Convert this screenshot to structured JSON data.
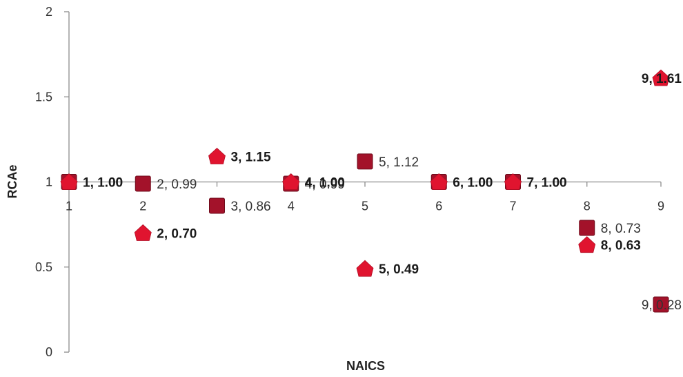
{
  "chart_data": {
    "type": "scatter",
    "title": "",
    "xlabel": "NAICS",
    "ylabel": "RCAe",
    "xlim": [
      1,
      9
    ],
    "ylim": [
      0,
      2
    ],
    "x_ticks": [
      "1",
      "2",
      "3",
      "4",
      "5",
      "6",
      "7",
      "8",
      "9"
    ],
    "y_ticks": [
      "0",
      "0.5",
      "1",
      "1.5",
      "2"
    ],
    "grid": false,
    "legend": "none",
    "series": [
      {
        "marker": "square",
        "color": "#a3122a",
        "bold_labels": false,
        "points": [
          {
            "x": 1,
            "y": 1.0,
            "label": "1, 1.00"
          },
          {
            "x": 2,
            "y": 0.99,
            "label": "2, 0.99"
          },
          {
            "x": 3,
            "y": 0.86,
            "label": "3, 0.86"
          },
          {
            "x": 4,
            "y": 0.99,
            "label": "4, 0.99"
          },
          {
            "x": 5,
            "y": 1.12,
            "label": "5, 1.12"
          },
          {
            "x": 6,
            "y": 1.0,
            "label": "6, 1.00"
          },
          {
            "x": 7,
            "y": 1.0,
            "label": "7, 1.00"
          },
          {
            "x": 8,
            "y": 0.73,
            "label": "8, 0.73"
          },
          {
            "x": 9,
            "y": 0.28,
            "label": "9, 0.28"
          }
        ]
      },
      {
        "marker": "triangle",
        "color": "#e0142f",
        "bold_labels": true,
        "points": [
          {
            "x": 1,
            "y": 1.0,
            "label": "1, 1.00"
          },
          {
            "x": 2,
            "y": 0.7,
            "label": "2, 0.70"
          },
          {
            "x": 3,
            "y": 1.15,
            "label": "3, 1.15"
          },
          {
            "x": 4,
            "y": 1.0,
            "label": "4, 1.00"
          },
          {
            "x": 5,
            "y": 0.49,
            "label": "5, 0.49"
          },
          {
            "x": 6,
            "y": 1.0,
            "label": "6, 1.00"
          },
          {
            "x": 7,
            "y": 1.0,
            "label": "7, 1.00"
          },
          {
            "x": 8,
            "y": 0.63,
            "label": "8, 0.63"
          },
          {
            "x": 9,
            "y": 1.61,
            "label": "9, 1.61"
          }
        ]
      }
    ]
  }
}
